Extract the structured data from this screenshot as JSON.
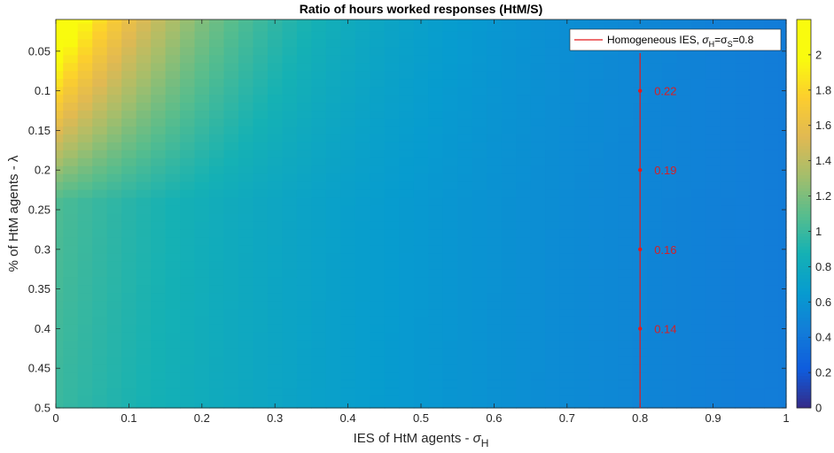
{
  "chart_data": {
    "type": "heatmap",
    "title": "Ratio of hours worked responses (HtM/S)",
    "xlabel_main": "IES of HtM agents - ",
    "xlabel_symbol": "σ",
    "xlabel_sub": "H",
    "ylabel": "% of HtM agents -  λ",
    "xlim": [
      0,
      1
    ],
    "ylim": [
      0.5,
      0.01
    ],
    "y_reversed": true,
    "x_ticks": [
      "0",
      "0.1",
      "0.2",
      "0.3",
      "0.4",
      "0.5",
      "0.6",
      "0.7",
      "0.8",
      "0.9",
      "1"
    ],
    "y_ticks": [
      "0.05",
      "0.1",
      "0.15",
      "0.2",
      "0.25",
      "0.3",
      "0.35",
      "0.4",
      "0.45",
      "0.5"
    ],
    "colorbar": {
      "range": [
        0,
        2.2
      ],
      "ticks": [
        "0",
        "0.2",
        "0.4",
        "0.6",
        "0.8",
        "1",
        "1.2",
        "1.4",
        "1.6",
        "1.8",
        "2"
      ],
      "colormap": "parula"
    },
    "legend": {
      "placement": "top-right",
      "label": "Homogeneous IES, ",
      "label_math": [
        "σ",
        "H",
        "=σ",
        "S",
        "=0.8"
      ],
      "color": "#e31a1c"
    },
    "reference_line": {
      "x": 0.8,
      "color": "#e31a1c"
    },
    "annotations": [
      {
        "x": 0.8,
        "y": 0.1,
        "text": "0.22"
      },
      {
        "x": 0.8,
        "y": 0.2,
        "text": "0.19"
      },
      {
        "x": 0.8,
        "y": 0.3,
        "text": "0.16"
      },
      {
        "x": 0.8,
        "y": 0.4,
        "text": "0.14"
      }
    ],
    "grid_resolution": {
      "nx": 51,
      "ny": 50
    },
    "surface_model": "ratio decreases with IES of HtM agents and with share of HtM agents; approx. 2.2 at (0, 0.01) to about 0.15 at (1, 0.5)"
  }
}
